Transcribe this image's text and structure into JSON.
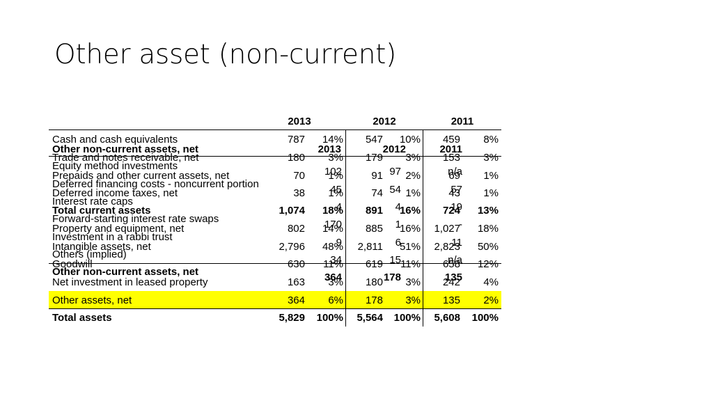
{
  "title": "Other asset (non-current)",
  "main_table": {
    "years": [
      "2013",
      "2012",
      "2011"
    ],
    "rows": [
      {
        "label": "Cash and cash equivalents",
        "v2013": "787",
        "p2013": "14%",
        "v2012": "547",
        "p2012": "10%",
        "v2011": "459",
        "p2011": "8%"
      },
      {
        "label": "Trade and notes receivable, net",
        "v2013": "180",
        "p2013": "3%",
        "v2012": "179",
        "p2012": "3%",
        "v2011": "153",
        "p2011": "3%"
      },
      {
        "label": "Prepaids and other current assets, net",
        "v2013": "70",
        "p2013": "1%",
        "v2012": "91",
        "p2012": "2%",
        "v2011": "69",
        "p2011": "1%"
      },
      {
        "label": "Deferred income taxes, net",
        "v2013": "38",
        "p2013": "1%",
        "v2012": "74",
        "p2012": "1%",
        "v2011": "43",
        "p2011": "1%"
      },
      {
        "label": "Total current assets",
        "v2013": "1,074",
        "p2013": "18%",
        "v2012": "891",
        "p2012": "16%",
        "v2011": "724",
        "p2011": "13%"
      },
      {
        "label": "Property and equipment, net",
        "v2013": "802",
        "p2013": "14%",
        "v2012": "885",
        "p2012": "16%",
        "v2011": "1,027",
        "p2011": "18%"
      },
      {
        "label": "Intangible assets, net",
        "v2013": "2,796",
        "p2013": "48%",
        "v2012": "2,811",
        "p2012": "51%",
        "v2011": "2,823",
        "p2011": "50%"
      },
      {
        "label": "Goodwill",
        "v2013": "630",
        "p2013": "11%",
        "v2012": "619",
        "p2012": "11%",
        "v2011": "658",
        "p2011": "12%"
      },
      {
        "label": "Net investment in leased property",
        "v2013": "163",
        "p2013": "3%",
        "v2012": "180",
        "p2012": "3%",
        "v2011": "242",
        "p2011": "4%"
      },
      {
        "label": "Other assets, net",
        "v2013": "364",
        "p2013": "6%",
        "v2012": "178",
        "p2012": "3%",
        "v2011": "135",
        "p2011": "2%"
      },
      {
        "label": "Total assets",
        "v2013": "5,829",
        "p2013": "100%",
        "v2012": "5,564",
        "p2012": "100%",
        "v2011": "5,608",
        "p2011": "100%"
      }
    ]
  },
  "overlay_table": {
    "header_label": "Other non-current assets, net",
    "years": [
      "2013",
      "2012",
      "2011"
    ],
    "rows": [
      {
        "label": "Equity method investments",
        "v2013": "102",
        "v2012": "97",
        "v2011": "n/a"
      },
      {
        "label": "Deferred financing costs - noncurrent portion",
        "v2013": "45",
        "v2012": "54",
        "v2011": "57"
      },
      {
        "label": "Interest rate caps",
        "v2013": "4",
        "v2012": "4",
        "v2011": "19"
      },
      {
        "label": "Forward-starting interest rate swaps",
        "v2013": "170",
        "v2012": "1",
        "v2011": "-"
      },
      {
        "label": "Investment in a rabbi trust",
        "v2013": "9",
        "v2012": "6",
        "v2011": "11"
      },
      {
        "label": "Others (implied)",
        "v2013": "34",
        "v2012": "15",
        "v2011": "n/a"
      },
      {
        "label": "Other non-current assets, net",
        "v2013": "364",
        "v2012": "178",
        "v2011": "135"
      }
    ]
  },
  "colors": {
    "highlight": "#ffff00",
    "text": "#000000",
    "background": "#ffffff"
  }
}
